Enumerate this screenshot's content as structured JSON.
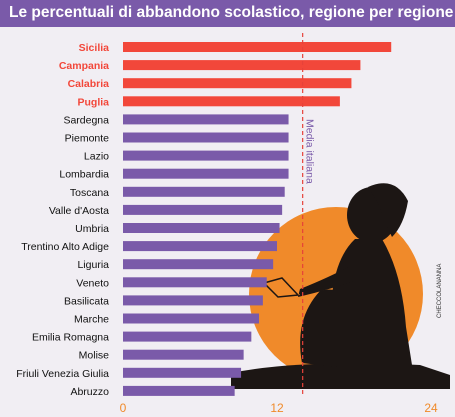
{
  "title": "Le percentuali di abbandono scolastico, regione per regione",
  "credit": "CHECCOLANANNA",
  "colors": {
    "highlight": "#f2473a",
    "default": "#7a5aa9",
    "sun": "#f08a2a",
    "silhouette": "#1c1614",
    "reference": "#e6423a"
  },
  "chart_data": {
    "type": "bar",
    "orientation": "horizontal",
    "title": "Le percentuali di abbandono scolastico, regione per regione",
    "categories": [
      "Sicilia",
      "Campania",
      "Calabria",
      "Puglia",
      "Sardegna",
      "Piemonte",
      "Lazio",
      "Lombardia",
      "Toscana",
      "Valle d'Aosta",
      "Umbria",
      "Trentino Alto Adige",
      "Liguria",
      "Veneto",
      "Basilicata",
      "Marche",
      "Emilia Romagna",
      "Molise",
      "Friuli Venezia Giulia",
      "Abruzzo"
    ],
    "values": [
      20.9,
      18.5,
      17.8,
      16.9,
      12.9,
      12.9,
      12.9,
      12.9,
      12.6,
      12.4,
      12.2,
      12.0,
      11.7,
      11.2,
      10.9,
      10.6,
      10.0,
      9.4,
      9.2,
      8.7
    ],
    "highlighted": [
      "Sicilia",
      "Campania",
      "Calabria",
      "Puglia"
    ],
    "xlim": [
      0,
      24
    ],
    "xticks": [
      0,
      12,
      24
    ],
    "reference_line": {
      "label": "Media italiana",
      "value": 14
    }
  }
}
